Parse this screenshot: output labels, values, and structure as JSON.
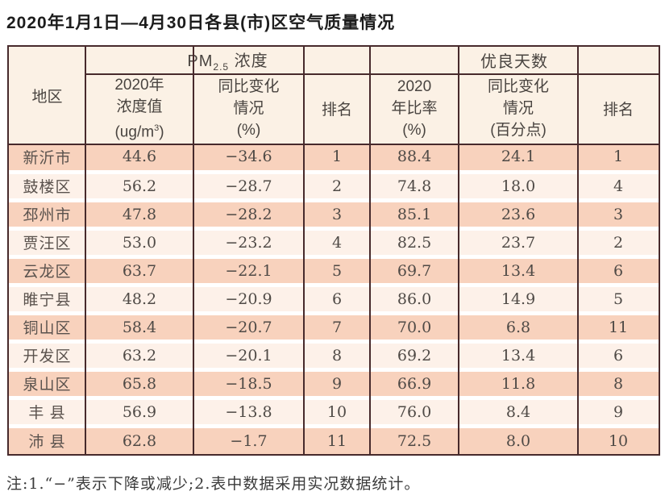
{
  "title": "2020年1月1日—4月30日各县(市)区空气质量情况",
  "note": "注:1.“−”表示下降或减少;2.表中数据采用实况数据统计。",
  "colors": {
    "row_dark": "#f8d2bd",
    "row_light": "#fdf1e9",
    "header_bg": "#fbf1e5",
    "border": "#472a2c"
  },
  "table": {
    "header": {
      "region": "地区",
      "pm_group": {
        "prefix": "PM",
        "sub": "2.5",
        "suffix": " 浓度"
      },
      "good_group": "优良天数",
      "pm_value_line1": "2020年",
      "pm_value_line2": "浓度值",
      "ugm3": {
        "prefix": "(ug/m",
        "sup": "3",
        "suffix": ")"
      },
      "pm_change_line1": "同比变化",
      "pm_change_line2": "情况",
      "pm_change_line3": "(%)",
      "pm_rank": "排名",
      "good_rate_line1": "2020",
      "good_rate_line2": "年比率",
      "good_rate_line3": "(%)",
      "good_change_line1": "同比变化",
      "good_change_line2": "情况",
      "good_change_line3": "(百分点)",
      "good_rank": "排名"
    },
    "rows": [
      {
        "region": "新沂市",
        "pm_value": "44.6",
        "pm_change": "−34.6",
        "pm_rank": "1",
        "good_rate": "88.4",
        "good_change": "24.1",
        "good_rank": "1"
      },
      {
        "region": "鼓楼区",
        "pm_value": "56.2",
        "pm_change": "−28.7",
        "pm_rank": "2",
        "good_rate": "74.8",
        "good_change": "18.0",
        "good_rank": "4"
      },
      {
        "region": "邳州市",
        "pm_value": "47.8",
        "pm_change": "−28.2",
        "pm_rank": "3",
        "good_rate": "85.1",
        "good_change": "23.6",
        "good_rank": "3"
      },
      {
        "region": "贾汪区",
        "pm_value": "53.0",
        "pm_change": "−23.2",
        "pm_rank": "4",
        "good_rate": "82.5",
        "good_change": "23.7",
        "good_rank": "2"
      },
      {
        "region": "云龙区",
        "pm_value": "63.7",
        "pm_change": "−22.1",
        "pm_rank": "5",
        "good_rate": "69.7",
        "good_change": "13.4",
        "good_rank": "6"
      },
      {
        "region": "睢宁县",
        "pm_value": "48.2",
        "pm_change": "−20.9",
        "pm_rank": "6",
        "good_rate": "86.0",
        "good_change": "14.9",
        "good_rank": "5"
      },
      {
        "region": "铜山区",
        "pm_value": "58.4",
        "pm_change": "−20.7",
        "pm_rank": "7",
        "good_rate": "70.0",
        "good_change": "6.8",
        "good_rank": "11"
      },
      {
        "region": "开发区",
        "pm_value": "63.2",
        "pm_change": "−20.1",
        "pm_rank": "8",
        "good_rate": "69.2",
        "good_change": "13.4",
        "good_rank": "6"
      },
      {
        "region": "泉山区",
        "pm_value": "65.8",
        "pm_change": "−18.5",
        "pm_rank": "9",
        "good_rate": "66.9",
        "good_change": "11.8",
        "good_rank": "8"
      },
      {
        "region": "丰 县",
        "pm_value": "56.9",
        "pm_change": "−13.8",
        "pm_rank": "10",
        "good_rate": "76.0",
        "good_change": "8.4",
        "good_rank": "9"
      },
      {
        "region": "沛 县",
        "pm_value": "62.8",
        "pm_change": "−1.7",
        "pm_rank": "11",
        "good_rate": "72.5",
        "good_change": "8.0",
        "good_rank": "10"
      }
    ]
  }
}
